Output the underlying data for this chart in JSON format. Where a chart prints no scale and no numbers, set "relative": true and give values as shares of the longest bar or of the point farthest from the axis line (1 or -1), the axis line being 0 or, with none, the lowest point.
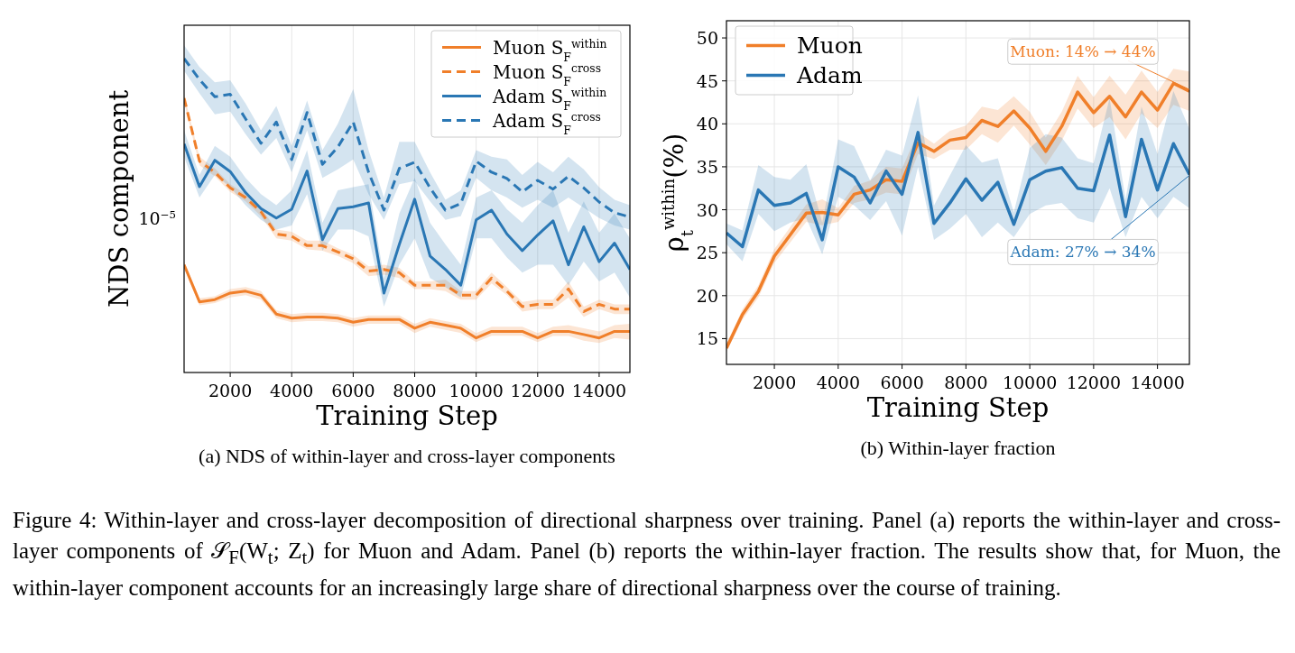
{
  "chart_data": [
    {
      "type": "line",
      "title": "(a) NDS of within-layer and cross-layer components",
      "xlabel": "Training Step",
      "ylabel": "NDS component",
      "relative": true,
      "grid": "x",
      "legend": "top right",
      "annotations": [
        "10$^{−5}$"
      ],
      "x": [
        500,
        1000,
        1500,
        2000,
        2500,
        3000,
        3500,
        4000,
        4500,
        5000,
        5500,
        6000,
        6500,
        7000,
        7500,
        8000,
        8500,
        9000,
        9500,
        10000,
        10500,
        11000,
        11500,
        12000,
        12500,
        13000,
        13500,
        14000,
        14500,
        15000
      ],
      "xlim": [
        500,
        15000
      ],
      "xticks": [
        2000,
        4000,
        6000,
        8000,
        10000,
        12000,
        14000
      ],
      "series": [
        {
          "name": "Muon S$_{F}$$^{within}$",
          "color": "#f07f2a",
          "line_style": "solid",
          "values": [
            0.343,
            0.225,
            0.232,
            0.253,
            0.259,
            0.246,
            0.186,
            0.173,
            0.177,
            0.177,
            0.173,
            0.16,
            0.169,
            0.169,
            0.169,
            0.141,
            0.16,
            0.151,
            0.141,
            0.11,
            0.131,
            0.131,
            0.131,
            0.11,
            0.131,
            0.131,
            0.121,
            0.11,
            0.131,
            0.131
          ],
          "lower": [
            0.333,
            0.214,
            0.221,
            0.239,
            0.246,
            0.232,
            0.173,
            0.16,
            0.164,
            0.164,
            0.16,
            0.146,
            0.155,
            0.155,
            0.155,
            0.126,
            0.146,
            0.136,
            0.126,
            0.097,
            0.117,
            0.117,
            0.117,
            0.097,
            0.116,
            0.116,
            0.101,
            0.094,
            0.11,
            0.105
          ],
          "upper": [
            0.353,
            0.236,
            0.243,
            0.266,
            0.272,
            0.259,
            0.198,
            0.186,
            0.19,
            0.19,
            0.186,
            0.173,
            0.182,
            0.182,
            0.182,
            0.155,
            0.173,
            0.164,
            0.155,
            0.126,
            0.146,
            0.146,
            0.146,
            0.126,
            0.146,
            0.151,
            0.141,
            0.131,
            0.151,
            0.155
          ]
        },
        {
          "name": "Muon S$_{F}$$^{cross}$",
          "color": "#f07f2a",
          "line_style": "dashed",
          "values": [
            0.874,
            0.673,
            0.638,
            0.588,
            0.557,
            0.512,
            0.441,
            0.434,
            0.404,
            0.404,
            0.384,
            0.362,
            0.323,
            0.328,
            0.318,
            0.278,
            0.278,
            0.278,
            0.246,
            0.246,
            0.301,
            0.259,
            0.21,
            0.217,
            0.217,
            0.266,
            0.194,
            0.217,
            0.202,
            0.202
          ],
          "lower": [
            0.861,
            0.66,
            0.625,
            0.575,
            0.545,
            0.498,
            0.427,
            0.42,
            0.392,
            0.388,
            0.371,
            0.348,
            0.307,
            0.312,
            0.301,
            0.266,
            0.266,
            0.259,
            0.232,
            0.232,
            0.284,
            0.246,
            0.194,
            0.202,
            0.202,
            0.239,
            0.177,
            0.202,
            0.186,
            0.186
          ],
          "upper": [
            0.885,
            0.687,
            0.65,
            0.6,
            0.568,
            0.525,
            0.455,
            0.448,
            0.42,
            0.42,
            0.396,
            0.375,
            0.338,
            0.343,
            0.333,
            0.29,
            0.29,
            0.296,
            0.259,
            0.259,
            0.318,
            0.272,
            0.225,
            0.232,
            0.232,
            0.29,
            0.21,
            0.232,
            0.217,
            0.217
          ]
        },
        {
          "name": "Adam S$_{F}$$^{within}$",
          "color": "#2a77b4",
          "line_style": "solid",
          "values": [
            0.728,
            0.592,
            0.676,
            0.64,
            0.573,
            0.522,
            0.492,
            0.52,
            0.642,
            0.423,
            0.522,
            0.528,
            0.54,
            0.253,
            0.408,
            0.552,
            0.371,
            0.328,
            0.278,
            0.486,
            0.517,
            0.441,
            0.388,
            0.438,
            0.483,
            0.343,
            0.464,
            0.353,
            0.412,
            0.328
          ],
          "lower": [
            0.687,
            0.557,
            0.629,
            0.59,
            0.533,
            0.486,
            0.455,
            0.468,
            0.568,
            0.388,
            0.455,
            0.455,
            0.434,
            0.21,
            0.343,
            0.427,
            0.301,
            0.272,
            0.239,
            0.427,
            0.427,
            0.366,
            0.318,
            0.343,
            0.343,
            0.278,
            0.353,
            0.29,
            0.318,
            0.239
          ],
          "upper": [
            0.771,
            0.629,
            0.722,
            0.687,
            0.62,
            0.568,
            0.533,
            0.58,
            0.708,
            0.477,
            0.58,
            0.59,
            0.6,
            0.301,
            0.506,
            0.62,
            0.477,
            0.408,
            0.343,
            0.557,
            0.58,
            0.52,
            0.477,
            0.533,
            0.58,
            0.445,
            0.545,
            0.445,
            0.506,
            0.427
          ]
        },
        {
          "name": "Adam S$_{F}$$^{cross}$",
          "color": "#2a77b4",
          "line_style": "dashed",
          "values": [
            1.0,
            0.933,
            0.878,
            0.886,
            0.808,
            0.73,
            0.798,
            0.678,
            0.828,
            0.663,
            0.718,
            0.798,
            0.638,
            0.517,
            0.65,
            0.67,
            0.588,
            0.517,
            0.538,
            0.673,
            0.638,
            0.618,
            0.575,
            0.612,
            0.584,
            0.625,
            0.588,
            0.543,
            0.509,
            0.495
          ],
          "lower": [
            0.961,
            0.889,
            0.822,
            0.831,
            0.759,
            0.694,
            0.747,
            0.638,
            0.771,
            0.62,
            0.647,
            0.679,
            0.568,
            0.486,
            0.6,
            0.61,
            0.545,
            0.486,
            0.498,
            0.62,
            0.58,
            0.557,
            0.525,
            0.55,
            0.525,
            0.557,
            0.525,
            0.492,
            0.468,
            0.455
          ],
          "upper": [
            1.042,
            0.973,
            0.924,
            0.931,
            0.857,
            0.771,
            0.849,
            0.722,
            0.866,
            0.708,
            0.792,
            0.903,
            0.708,
            0.557,
            0.735,
            0.735,
            0.638,
            0.55,
            0.58,
            0.708,
            0.687,
            0.679,
            0.629,
            0.671,
            0.638,
            0.687,
            0.647,
            0.59,
            0.55,
            0.533
          ]
        }
      ]
    },
    {
      "type": "line",
      "title": "(b) Within-layer fraction",
      "xlabel": "Training Step",
      "ylabel": "ρ$_{t}$$^{within}$(%)",
      "grid": true,
      "legend": "top left",
      "x": [
        500,
        1000,
        1500,
        2000,
        2500,
        3000,
        3500,
        4000,
        4500,
        5000,
        5500,
        6000,
        6500,
        7000,
        7500,
        8000,
        8500,
        9000,
        9500,
        10000,
        10500,
        11000,
        11500,
        12000,
        12500,
        13000,
        13500,
        14000,
        14500,
        15000
      ],
      "xlim": [
        500,
        15000
      ],
      "xticks": [
        2000,
        4000,
        6000,
        8000,
        10000,
        12000,
        14000
      ],
      "ylim": [
        12,
        52
      ],
      "yticks": [
        15,
        20,
        25,
        30,
        35,
        40,
        45,
        50
      ],
      "annotations": [
        {
          "text": "Muon: 14% → 44%",
          "x": 15000,
          "y": 44
        },
        {
          "text": "Adam: 27% → 34%",
          "x": 15000,
          "y": 34
        }
      ],
      "series": [
        {
          "name": "Muon",
          "color": "#f07f2a",
          "values": [
            13.9,
            17.8,
            20.5,
            24.6,
            27.1,
            29.6,
            29.7,
            29.4,
            31.8,
            32.3,
            33.5,
            33.3,
            37.8,
            36.8,
            38.1,
            38.4,
            40.4,
            39.7,
            41.5,
            39.5,
            36.8,
            39.7,
            43.7,
            41.3,
            43.2,
            40.8,
            43.7,
            41.6,
            44.7,
            43.8
          ],
          "lower": [
            13.5,
            17.2,
            19.8,
            23.8,
            26.2,
            28.6,
            28.2,
            28.6,
            30.8,
            31.2,
            32.0,
            31.8,
            36.5,
            35.9,
            37.0,
            37.0,
            38.8,
            37.8,
            39.8,
            37.6,
            35.2,
            38.0,
            41.8,
            39.5,
            40.8,
            38.2,
            41.2,
            39.5,
            42.2,
            41.5
          ],
          "upper": [
            14.3,
            18.4,
            21.2,
            25.4,
            28.0,
            30.6,
            31.2,
            30.2,
            32.8,
            33.4,
            35.0,
            34.8,
            39.0,
            37.7,
            39.2,
            39.8,
            42.0,
            41.6,
            43.2,
            41.4,
            38.4,
            41.4,
            45.6,
            43.1,
            45.6,
            43.4,
            46.2,
            43.7,
            46.4,
            46.1
          ]
        },
        {
          "name": "Adam",
          "color": "#2a77b4",
          "values": [
            27.3,
            25.7,
            32.3,
            30.5,
            30.8,
            31.9,
            26.5,
            35.0,
            33.8,
            30.8,
            34.5,
            31.8,
            39.0,
            28.4,
            30.8,
            33.6,
            31.1,
            33.2,
            28.3,
            33.5,
            34.5,
            34.9,
            32.5,
            32.2,
            38.7,
            29.2,
            38.2,
            32.3,
            37.7,
            34.1
          ],
          "lower": [
            26.0,
            24.0,
            29.5,
            27.5,
            28.5,
            29.0,
            24.8,
            31.5,
            30.5,
            28.8,
            31.0,
            27.0,
            35.0,
            26.5,
            27.8,
            29.5,
            26.8,
            28.5,
            26.8,
            29.5,
            30.5,
            30.8,
            29.0,
            28.5,
            32.5,
            26.8,
            31.5,
            29.0,
            31.5,
            30.2
          ],
          "upper": [
            28.4,
            27.6,
            35.2,
            33.8,
            33.5,
            35.3,
            28.5,
            38.2,
            37.4,
            33.4,
            37.0,
            36.3,
            43.3,
            30.5,
            34.0,
            37.5,
            35.5,
            36.0,
            29.7,
            37.2,
            38.8,
            38.4,
            36.0,
            35.4,
            43.0,
            31.2,
            42.0,
            36.5,
            43.8,
            39.4
          ]
        }
      ]
    },
    {
      "type": "other",
      "annotations": [
        "Figure 4: Within-layer and cross-layer decomposition of directional sharpness over training. Panel (a) reports the within-layer and cross-layer components of 𝒮$_{F}$(W$_{t}$; Z$_{t}$) for Muon and Adam. Panel (b) reports the within-layer fraction. The results show that, for Muon, the within-layer component accounts for an increasingly large share of directional sharpness over the course of training."
      ]
    }
  ]
}
